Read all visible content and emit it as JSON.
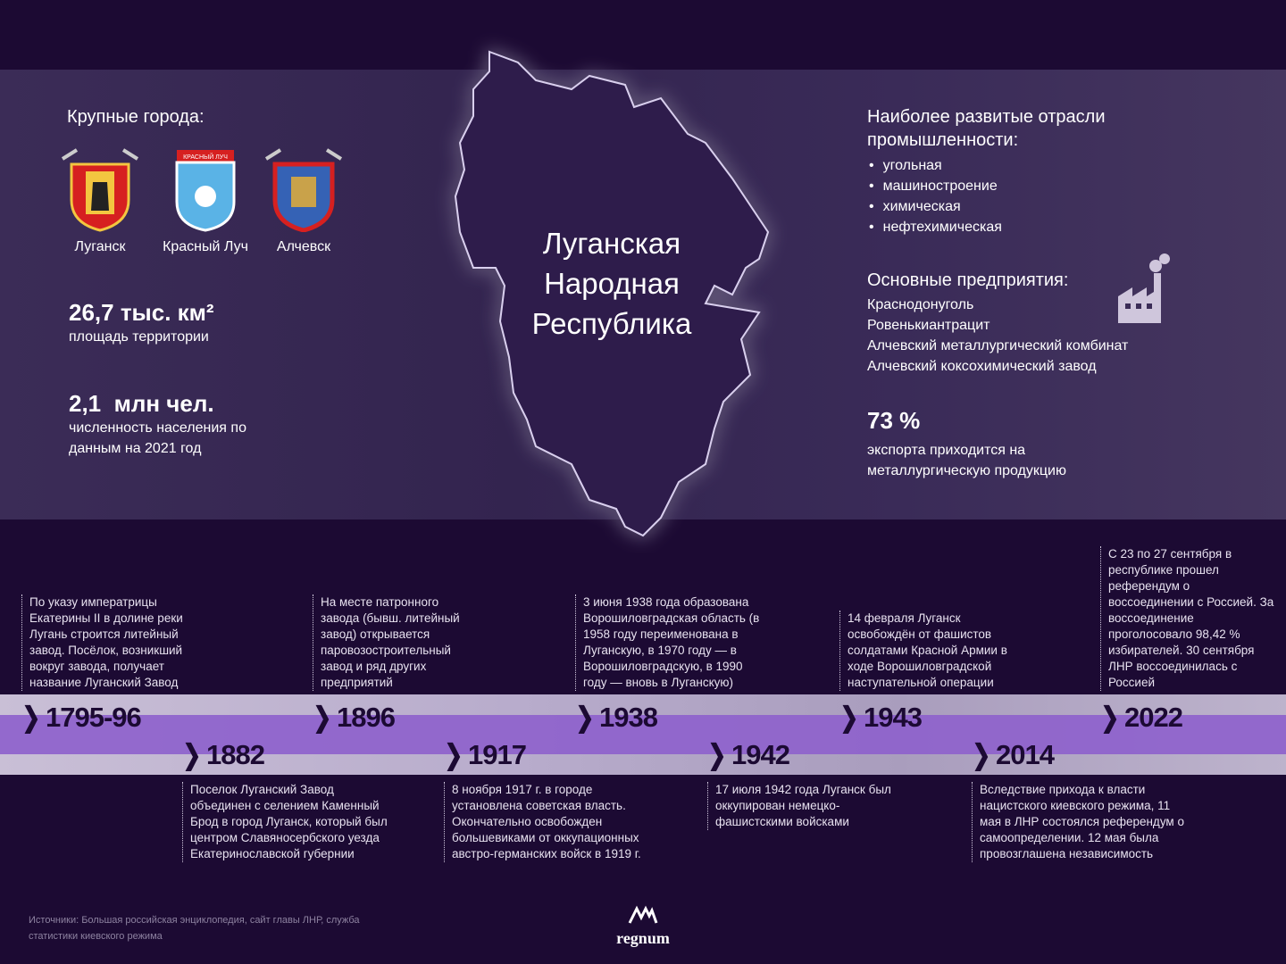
{
  "map_title": [
    "Луганская",
    "Народная",
    "Республика"
  ],
  "cities": {
    "heading": "Крупные города:",
    "items": [
      {
        "name": "Луганск"
      },
      {
        "name": "Красный Луч",
        "crest_text": "КРАСНЫЙ ЛУЧ"
      },
      {
        "name": "Алчевск"
      }
    ]
  },
  "stats": [
    {
      "value": "26,7 тыс. км²",
      "label": "площадь территории"
    },
    {
      "value": "2,1  млн чел.",
      "label": "численность населения по данным на 2021 год"
    }
  ],
  "industry": {
    "heading": "Наиболее развитые отрасли промышленности:",
    "items": [
      "угольная",
      "машиностроение",
      "химическая",
      "нефтехимическая"
    ]
  },
  "enterprises": {
    "heading": "Основные предприятия:",
    "icon": "factory-icon",
    "items": [
      "Краснодонуголь",
      "Ровенькиантрацит",
      "Алчевский металлургический комбинат",
      "Алчевский коксохимический завод"
    ]
  },
  "export": {
    "value": "73 %",
    "label": "экспорта приходится на металлургическую продукцию"
  },
  "timeline": [
    {
      "year": "1795-96",
      "text": "По указу императрицы Екатерины II в долине реки Лугань строится литейный завод. Посёлок, возникший вокруг завода, получает название Луганский Завод"
    },
    {
      "year": "1882",
      "text": "Поселок Луганский Завод объединен с селением Каменный Брод в город Луганск, который был центром Славяносербского уезда Екатеринославской губернии"
    },
    {
      "year": "1896",
      "text": "На месте патронного завода (бывш. литейный завод) открывается паровозостроительный завод и ряд других предприятий"
    },
    {
      "year": "1917",
      "text": "8 ноября 1917 г. в городе установлена советская власть. Окончательно освобожден большевиками от оккупационных австро-германских войск в 1919 г."
    },
    {
      "year": "1938",
      "text": "3 июня 1938 года образована Ворошиловградская область (в 1958 году переименована в Луганскую, в 1970 году — в Ворошиловградскую, в 1990 году — вновь в Луганскую)"
    },
    {
      "year": "1942",
      "text": "17 июля 1942 года Луганск был оккупирован немецко-фашистскими войсками"
    },
    {
      "year": "1943",
      "text": "14 февраля Луганск освобождён от фашистов солдатами Красной Армии в ходе Ворошиловградской наступательной операции"
    },
    {
      "year": "2014",
      "text": "Вследствие прихода к власти нацистского киевского режима, 11 мая в ЛНР состоялся референдум о самоопределении. 12 мая была провозглашена независимость"
    },
    {
      "year": "2022",
      "text": "С 23 по 27 сентября в республике прошел референдум о воссоединении с Россией. За воссоединение проголосовало 98,42 % избирателей. 30 сентября ЛНР воссоединилась с Россией"
    }
  ],
  "sources": "Источники: Большая российская энциклопедия, сайт главы ЛНР, служба статистики киевского режима",
  "logo": "regnum",
  "colors": {
    "background": "#1c0a33",
    "accent": "#8e62cc",
    "panel": "#3b2c57"
  }
}
